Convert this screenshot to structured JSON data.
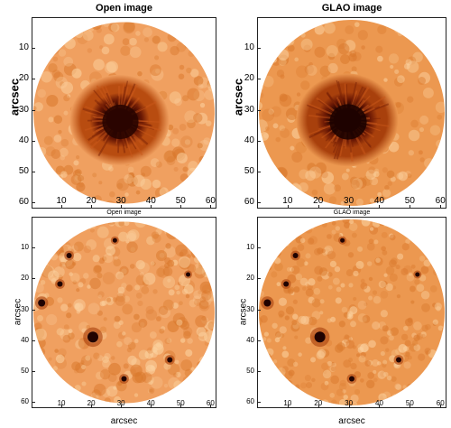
{
  "panels": [
    {
      "id": "top-left",
      "title": "Open image",
      "title_style": "big",
      "ylabel": "arcsec",
      "xlabel": "",
      "y_ticks": [
        "10",
        "20",
        "30",
        "40",
        "50",
        "60"
      ],
      "x_ticks": [
        "10",
        "20",
        "30",
        "40",
        "50",
        "60"
      ],
      "content": "sunspot",
      "umbra_color": "#2a0400",
      "penumbra_color": "#b84c10",
      "photosphere_color": "#f0a060"
    },
    {
      "id": "top-right",
      "title": "GLAO image",
      "title_style": "big",
      "ylabel": "arcsec",
      "xlabel": "",
      "y_ticks": [
        "10",
        "20",
        "30",
        "40",
        "50",
        "60"
      ],
      "x_ticks": [
        "10",
        "20",
        "30",
        "40",
        "50",
        "60"
      ],
      "content": "sunspot",
      "umbra_color": "#1e0200",
      "penumbra_color": "#a8400c",
      "photosphere_color": "#ec9850"
    },
    {
      "id": "bottom-left",
      "title": "Open image",
      "title_style": "small",
      "ylabel": "arcsec",
      "xlabel": "arcsec",
      "y_ticks": [
        "10",
        "20",
        "30",
        "40",
        "50",
        "60"
      ],
      "x_ticks": [
        "10",
        "20",
        "30",
        "40",
        "50",
        "60"
      ],
      "content": "pores",
      "photosphere_color": "#f0a060"
    },
    {
      "id": "bottom-right",
      "title": "GLAO image",
      "title_style": "small",
      "ylabel": "arcsec",
      "xlabel": "arcsec",
      "y_ticks": [
        "10",
        "20",
        "30",
        "40",
        "50",
        "60"
      ],
      "x_ticks": [
        "10",
        "20",
        "30",
        "40",
        "50",
        "60"
      ],
      "content": "pores",
      "photosphere_color": "#ec9850"
    }
  ],
  "axis_range": [
    0,
    62
  ]
}
